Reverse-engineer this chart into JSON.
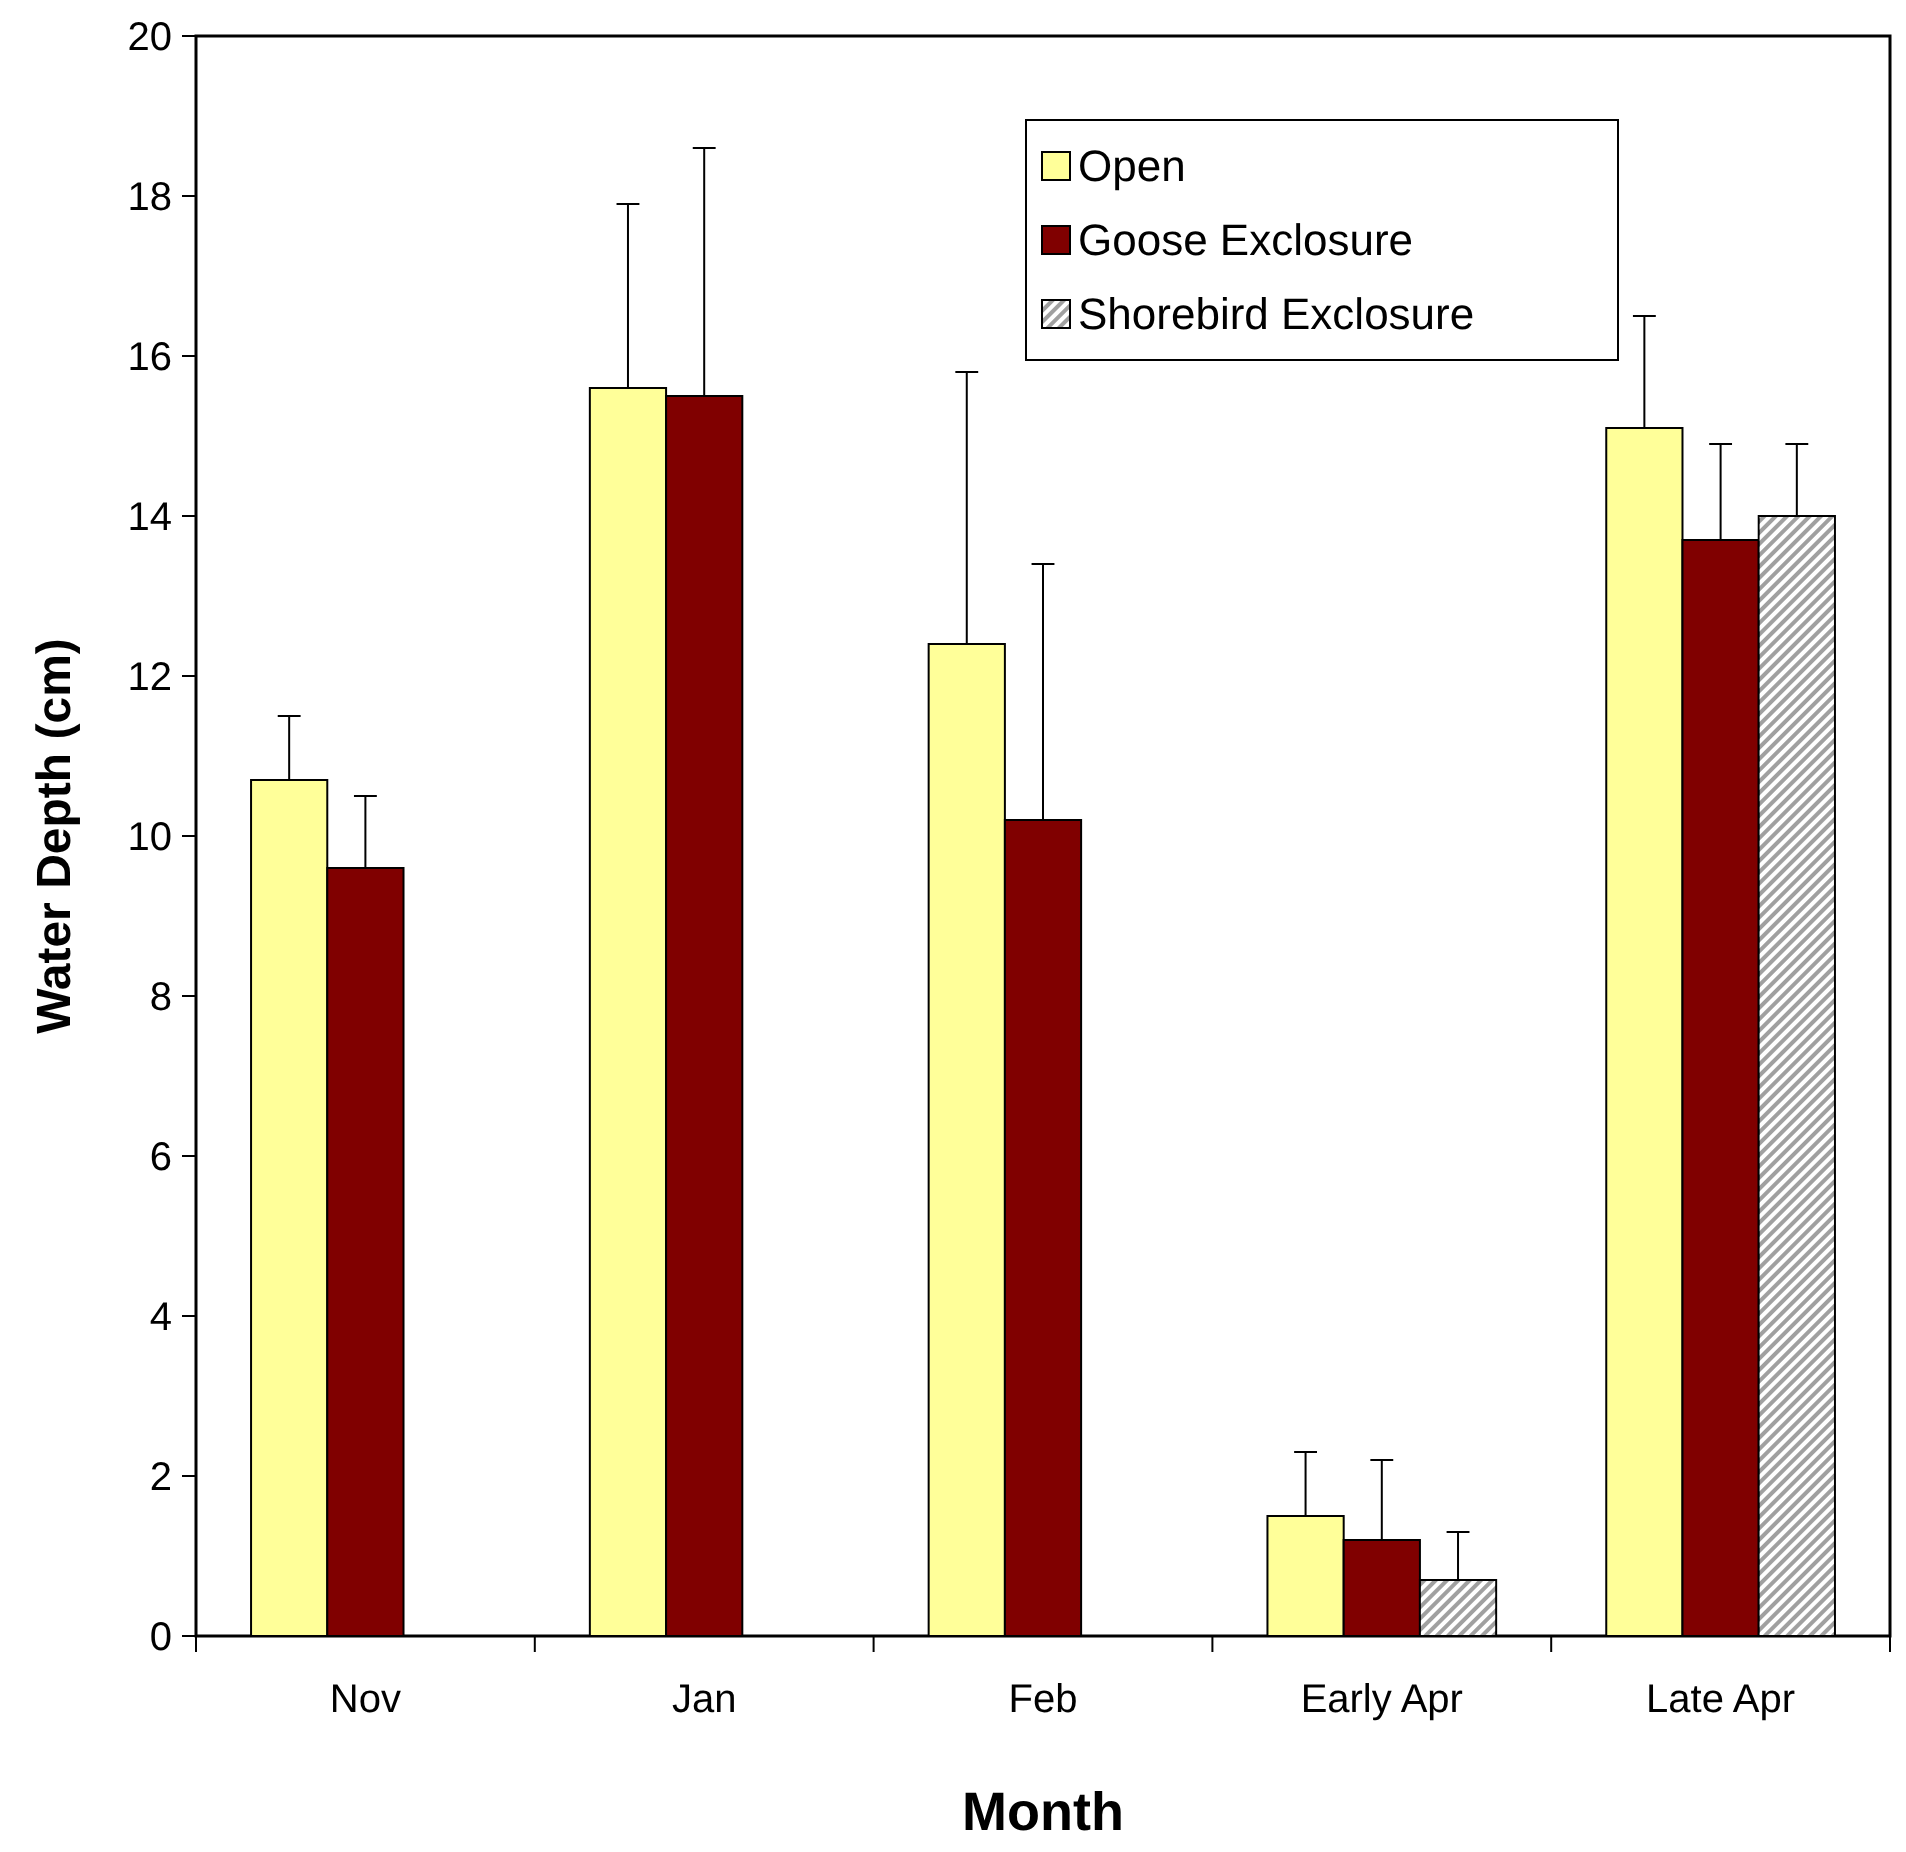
{
  "chart_data": {
    "type": "bar",
    "xlabel": "Month",
    "ylabel": "Water Depth (cm)",
    "categories": [
      "Nov",
      "Jan",
      "Feb",
      "Early Apr",
      "Late Apr"
    ],
    "series": [
      {
        "name": "Open",
        "color": "#ffff99",
        "values": [
          10.7,
          15.6,
          12.4,
          1.5,
          15.1
        ],
        "errors": [
          [
            10.7,
            11.5
          ],
          [
            15.6,
            17.9
          ],
          [
            12.4,
            15.8
          ],
          [
            1.5,
            2.3
          ],
          [
            15.1,
            16.5
          ]
        ]
      },
      {
        "name": "Goose Exclosure",
        "color": "#800000",
        "values": [
          9.6,
          15.5,
          10.2,
          1.2,
          13.7
        ],
        "errors": [
          [
            9.6,
            10.5
          ],
          [
            15.5,
            18.6
          ],
          [
            10.2,
            13.4
          ],
          [
            1.2,
            2.2
          ],
          [
            13.7,
            14.9
          ]
        ]
      },
      {
        "name": "Shorebird Exclosure",
        "color": "#a0a0a0",
        "values": [
          0,
          0,
          0,
          0.7,
          14.0
        ],
        "errors": [
          null,
          null,
          null,
          [
            0.7,
            1.3
          ],
          [
            14.0,
            14.9
          ]
        ]
      }
    ],
    "ylim": [
      0,
      20
    ],
    "yticks": [
      0,
      2,
      4,
      6,
      8,
      10,
      12,
      14,
      16,
      18,
      20
    ],
    "grid": false,
    "legend": "top right"
  }
}
